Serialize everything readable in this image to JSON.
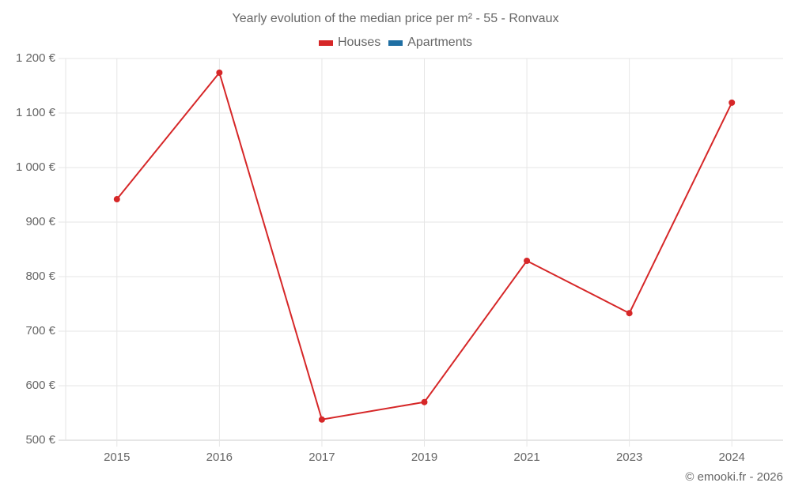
{
  "chart_data": {
    "type": "line",
    "title": "Yearly evolution of the median price per m² - 55 - Ronvaux",
    "xlabel": "",
    "ylabel": "",
    "categories": [
      "2015",
      "2016",
      "2017",
      "2019",
      "2021",
      "2023",
      "2024"
    ],
    "series": [
      {
        "name": "Houses",
        "color": "#d62728",
        "values": [
          942,
          1174,
          538,
          570,
          829,
          733,
          1119
        ]
      },
      {
        "name": "Apartments",
        "color": "#1f6fa3",
        "values": []
      }
    ],
    "ylim": [
      500,
      1200
    ],
    "yticks": [
      "1 200 €",
      "1 100 €",
      "1 000 €",
      "900 €",
      "800 €",
      "700 €",
      "600 €",
      "500 €"
    ],
    "ytick_values": [
      1200,
      1100,
      1000,
      900,
      800,
      700,
      600,
      500
    ],
    "grid": true,
    "legend_position": "top"
  },
  "legend": [
    {
      "label": "Houses",
      "color": "#d62728"
    },
    {
      "label": "Apartments",
      "color": "#1f6fa3"
    }
  ],
  "credit": "© emooki.fr - 2026"
}
